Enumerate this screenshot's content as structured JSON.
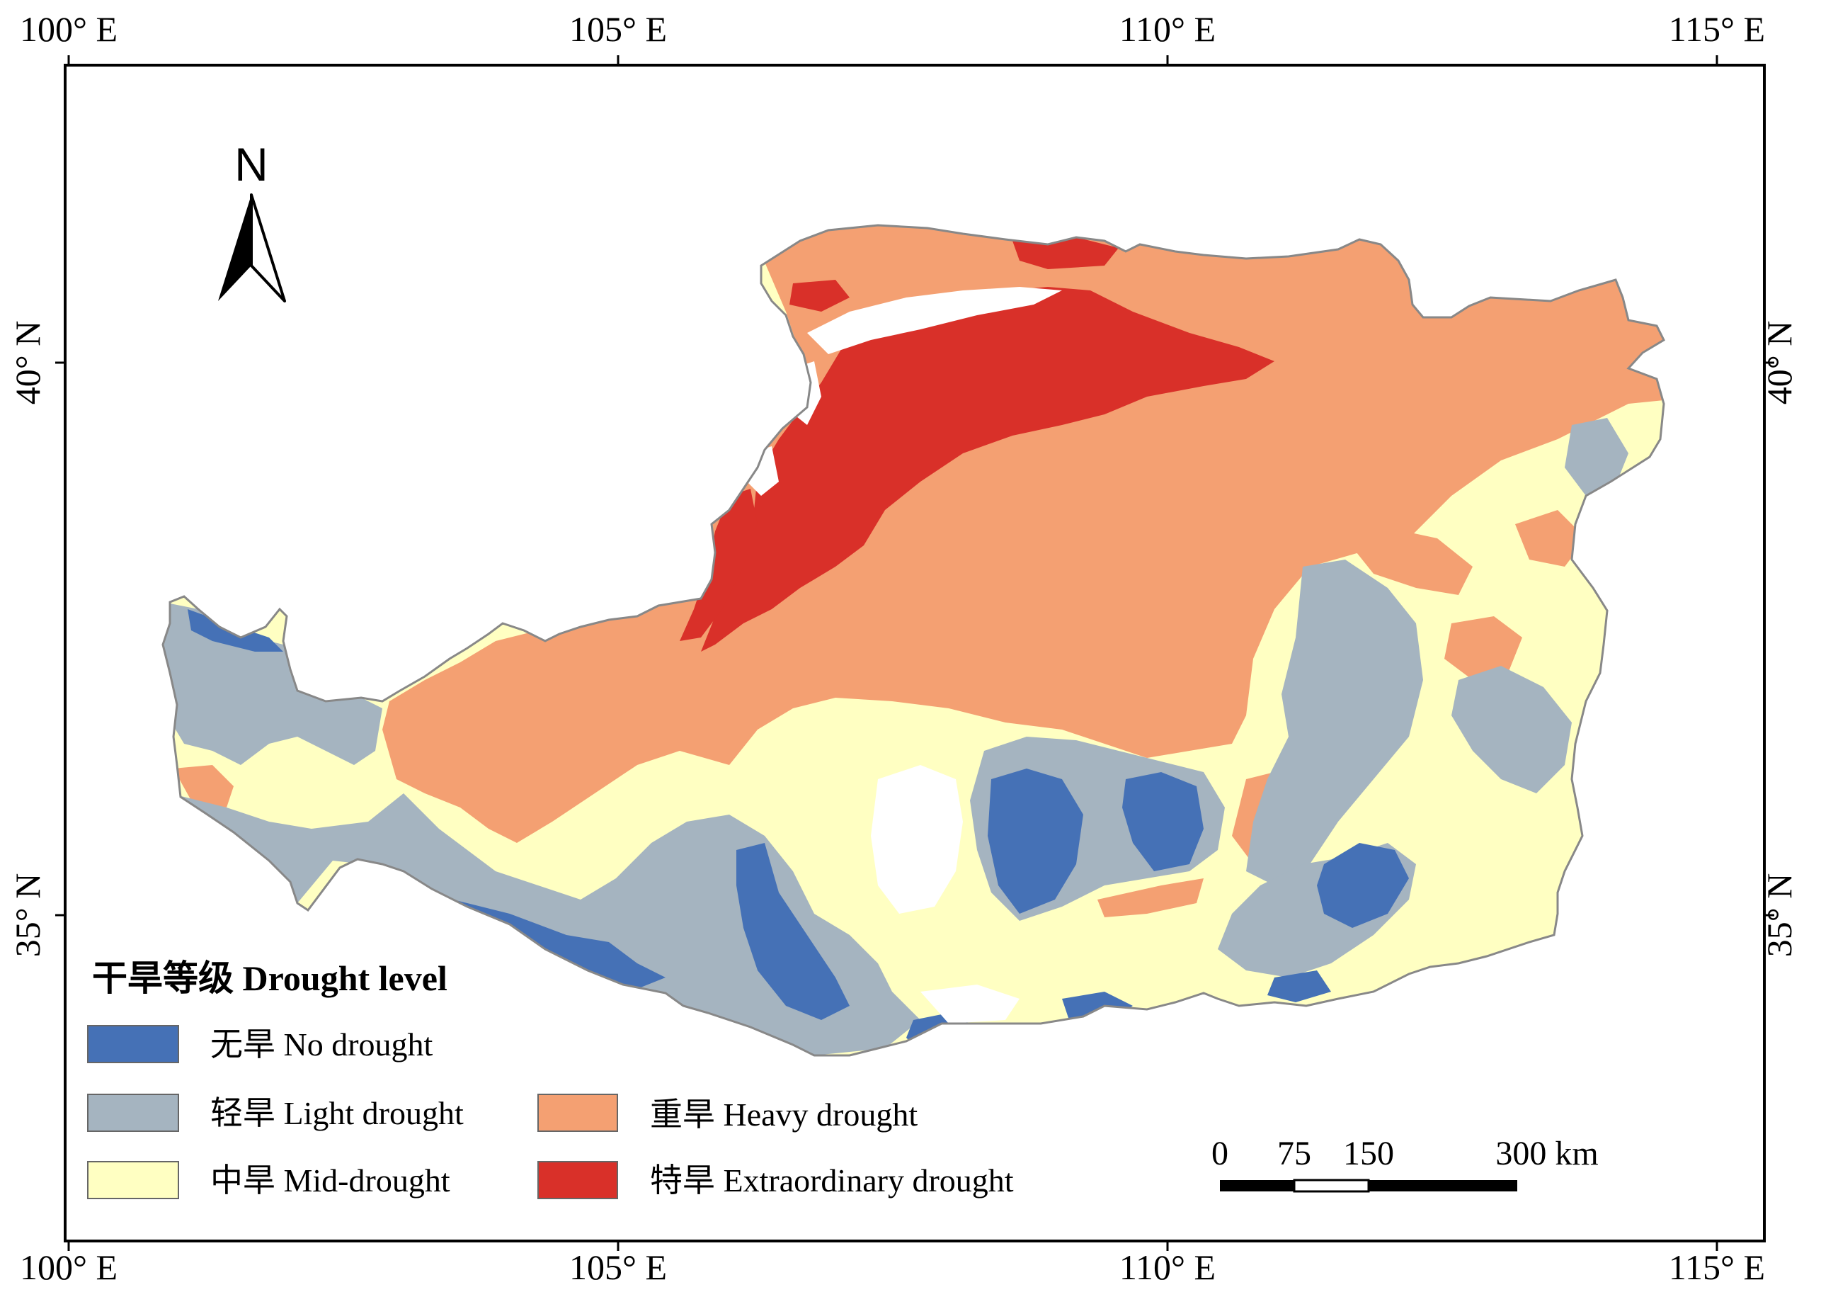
{
  "map": {
    "longitude_labels": [
      "100° E",
      "105° E",
      "110° E",
      "115° E"
    ],
    "latitude_labels": [
      "40° N",
      "35° N"
    ],
    "north_arrow_label": "N",
    "legend": {
      "title": "干旱等级 Drought level",
      "items": [
        {
          "key": "no",
          "label": "无旱 No drought",
          "color": "#4571b6"
        },
        {
          "key": "light",
          "label": "轻旱 Light drought",
          "color": "#a5b4c0"
        },
        {
          "key": "mid",
          "label": "中旱 Mid-drought",
          "color": "#ffffc2"
        },
        {
          "key": "heavy",
          "label": "重旱 Heavy drought",
          "color": "#f4a072"
        },
        {
          "key": "extra",
          "label": "特旱 Extraordinary drought",
          "color": "#d93029"
        }
      ]
    },
    "scale_bar": {
      "ticks": [
        "0",
        "75",
        "150",
        "300 km"
      ]
    },
    "colors": {
      "no_drought": "#4571b6",
      "light_drought": "#a5b4c0",
      "mid_drought": "#ffffc2",
      "heavy_drought": "#f4a072",
      "extraordinary_drought": "#d93029",
      "no_data": "#ffffff",
      "outline": "#888888"
    }
  }
}
